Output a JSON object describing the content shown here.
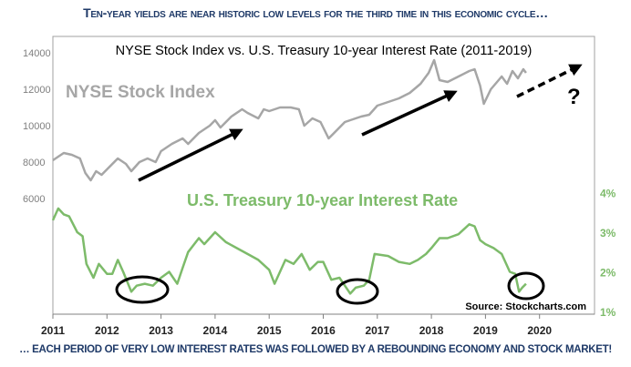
{
  "headline_top": "Ten-year yields are near historic low levels for the third time in this economic cycle…",
  "headline_bottom": "… EACH PERIOD OF VERY LOW INTEREST RATES WAS FOLLOWED BY A REBOUNDING ECONOMY AND STOCK MARKET!",
  "chart_data": {
    "type": "line",
    "title": "NYSE Stock Index vs. U.S. Treasury 10-year Interest Rate (2011-2019)",
    "source": "Source: Stockcharts.com",
    "xlim": [
      2011,
      2020.9
    ],
    "x_ticks": [
      "2011",
      "2012",
      "2013",
      "2014",
      "2015",
      "2016",
      "2017",
      "2018",
      "2019",
      "2020"
    ],
    "y_left": {
      "ylim": [
        5000,
        14500
      ],
      "ticks": [
        "6000",
        "8000",
        "10000",
        "12000",
        "14000"
      ]
    },
    "y_right": {
      "ylim": [
        1,
        4.6
      ],
      "ticks": [
        "1%",
        "2%",
        "3%",
        "4%"
      ]
    },
    "annotation_question": "?",
    "colors": {
      "nyse": "#a6a6a6",
      "rate": "#7dbb6a",
      "heading": "#1f3a68"
    },
    "series": [
      {
        "name": "NYSE Stock Index",
        "axis": "left",
        "x": [
          2011.0,
          2011.1,
          2011.2,
          2011.35,
          2011.5,
          2011.6,
          2011.7,
          2011.8,
          2011.9,
          2012.0,
          2012.2,
          2012.35,
          2012.45,
          2012.6,
          2012.75,
          2012.9,
          2013.0,
          2013.2,
          2013.4,
          2013.5,
          2013.7,
          2013.9,
          2014.0,
          2014.1,
          2014.3,
          2014.5,
          2014.6,
          2014.8,
          2014.9,
          2015.0,
          2015.2,
          2015.4,
          2015.55,
          2015.65,
          2015.8,
          2015.95,
          2016.1,
          2016.2,
          2016.4,
          2016.5,
          2016.7,
          2016.85,
          2017.0,
          2017.2,
          2017.4,
          2017.6,
          2017.8,
          2017.95,
          2018.05,
          2018.15,
          2018.3,
          2018.5,
          2018.7,
          2018.8,
          2018.9,
          2018.97,
          2019.1,
          2019.3,
          2019.4,
          2019.5,
          2019.6,
          2019.7,
          2019.75
        ],
        "y": [
          8100,
          8300,
          8500,
          8400,
          8200,
          7400,
          7000,
          7500,
          7300,
          7600,
          8200,
          7900,
          7500,
          8000,
          8200,
          8000,
          8600,
          9000,
          9300,
          9000,
          9600,
          10000,
          10300,
          9900,
          10500,
          10900,
          10700,
          10400,
          10900,
          10800,
          11000,
          11000,
          10900,
          10000,
          10400,
          10200,
          9300,
          9600,
          10200,
          10300,
          10500,
          10600,
          11100,
          11300,
          11500,
          11800,
          12300,
          12900,
          13600,
          12500,
          12400,
          12700,
          13000,
          13100,
          12200,
          11200,
          12000,
          12700,
          12300,
          13000,
          12600,
          13100,
          12900
        ]
      },
      {
        "name": "U.S. Treasury 10-year Interest Rate",
        "axis": "right",
        "x": [
          2011.0,
          2011.1,
          2011.2,
          2011.3,
          2011.45,
          2011.55,
          2011.62,
          2011.75,
          2011.85,
          2012.0,
          2012.1,
          2012.2,
          2012.3,
          2012.45,
          2012.55,
          2012.7,
          2012.85,
          2013.0,
          2013.15,
          2013.3,
          2013.4,
          2013.5,
          2013.7,
          2013.8,
          2014.0,
          2014.2,
          2014.4,
          2014.6,
          2014.8,
          2015.0,
          2015.1,
          2015.3,
          2015.45,
          2015.6,
          2015.75,
          2015.9,
          2016.0,
          2016.15,
          2016.3,
          2016.5,
          2016.6,
          2016.75,
          2016.85,
          2016.95,
          2017.2,
          2017.4,
          2017.6,
          2017.75,
          2017.9,
          2018.0,
          2018.15,
          2018.3,
          2018.5,
          2018.7,
          2018.8,
          2018.9,
          2019.0,
          2019.15,
          2019.3,
          2019.45,
          2019.55,
          2019.62,
          2019.68,
          2019.75
        ],
        "y": [
          3.3,
          3.6,
          3.45,
          3.4,
          3.0,
          2.9,
          2.2,
          1.85,
          2.2,
          1.95,
          1.95,
          2.3,
          2.0,
          1.5,
          1.65,
          1.7,
          1.65,
          1.85,
          2.0,
          1.7,
          2.1,
          2.5,
          2.85,
          2.7,
          3.0,
          2.75,
          2.6,
          2.45,
          2.3,
          2.05,
          1.7,
          2.3,
          2.2,
          2.45,
          2.05,
          2.25,
          2.25,
          1.8,
          1.85,
          1.45,
          1.6,
          1.65,
          1.8,
          2.45,
          2.4,
          2.25,
          2.2,
          2.3,
          2.45,
          2.6,
          2.85,
          2.85,
          2.95,
          3.2,
          3.15,
          2.8,
          2.7,
          2.6,
          2.45,
          2.0,
          1.95,
          1.5,
          1.6,
          1.7
        ]
      }
    ]
  }
}
